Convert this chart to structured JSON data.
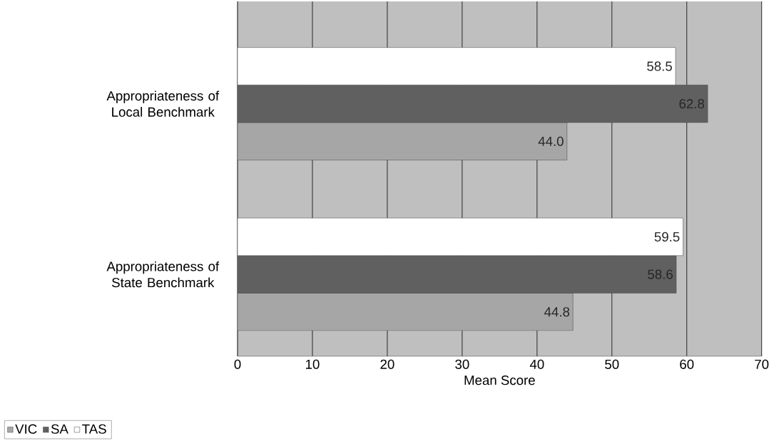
{
  "chart_data": {
    "type": "bar",
    "orientation": "horizontal",
    "xlabel": "Mean Score",
    "categories": [
      "Appropriateness of Local Benchmark",
      "Appropriateness of State Benchmark"
    ],
    "series": [
      {
        "name": "VIC",
        "color": "#a6a6a6",
        "values": [
          44.0,
          44.8
        ],
        "value_labels": [
          "44.0",
          "44.8"
        ]
      },
      {
        "name": "SA",
        "color": "#606060",
        "values": [
          62.8,
          58.6
        ],
        "value_labels": [
          "62.8",
          "58.6"
        ]
      },
      {
        "name": "TAS",
        "color": "#ffffff",
        "values": [
          58.5,
          59.5
        ],
        "value_labels": [
          "58.5",
          "59.5"
        ]
      }
    ],
    "xlim": [
      0,
      70
    ],
    "xticks": [
      0,
      10,
      20,
      30,
      40,
      50,
      60,
      70
    ],
    "grid": "x",
    "legend": "bottom left"
  }
}
